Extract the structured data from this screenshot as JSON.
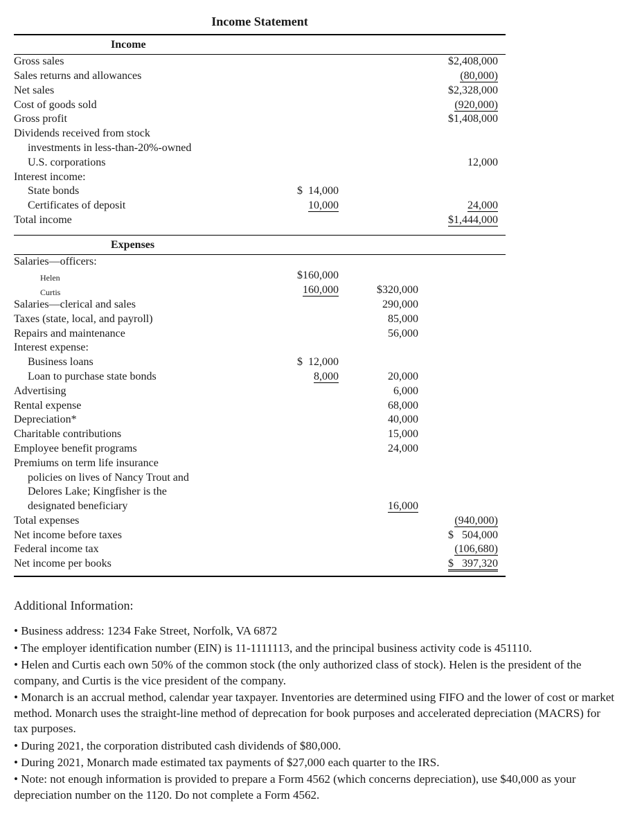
{
  "title": "Income Statement",
  "sections": {
    "income_header": "Income",
    "expenses_header": "Expenses"
  },
  "income": {
    "gross_sales": {
      "label": "Gross sales",
      "v3": "$2,408,000"
    },
    "returns": {
      "label": "Sales returns and allowances",
      "v3": "(80,000)",
      "u3": true
    },
    "net_sales": {
      "label": "Net sales",
      "v3": "$2,328,000"
    },
    "cogs": {
      "label": "Cost of goods sold",
      "v3": "(920,000)",
      "u3": true
    },
    "gross_profit": {
      "label": "Gross profit",
      "v3": "$1,408,000"
    },
    "dividends1": {
      "label": "Dividends received from stock"
    },
    "dividends2": {
      "label": "investments in less-than-20%-owned",
      "indent": 1
    },
    "dividends3": {
      "label": "U.S. corporations",
      "indent": 1,
      "v3": "12,000"
    },
    "interest_header": {
      "label": "Interest income:"
    },
    "state_bonds": {
      "label": "State bonds",
      "indent": 1,
      "v1": "$  14,000"
    },
    "cds": {
      "label": "Certificates of deposit",
      "indent": 1,
      "v1": "10,000",
      "u1": true,
      "v3": "24,000",
      "u3": true
    },
    "total_income": {
      "label": "Total income",
      "v3": "$1,444,000",
      "d3": true
    }
  },
  "expenses": {
    "sal_off": {
      "label": "Salaries—officers:"
    },
    "helen": {
      "label": "Helen",
      "small": true,
      "v1": "$160,000"
    },
    "curtis": {
      "label": "Curtis",
      "small": true,
      "v1": "160,000",
      "u1": true,
      "v2": "$320,000"
    },
    "sal_cs": {
      "label": "Salaries—clerical and sales",
      "v2": "290,000"
    },
    "taxes": {
      "label": "Taxes (state, local, and payroll)",
      "v2": "85,000"
    },
    "repairs": {
      "label": "Repairs and maintenance",
      "v2": "56,000"
    },
    "int_exp_h": {
      "label": "Interest expense:"
    },
    "bus_loans": {
      "label": "Business loans",
      "indent": 1,
      "v1": "$  12,000"
    },
    "loan_sb": {
      "label": "Loan to purchase state bonds",
      "indent": 1,
      "v1": "8,000",
      "u1": true,
      "v2": "20,000"
    },
    "adv": {
      "label": "Advertising",
      "v2": "6,000"
    },
    "rental": {
      "label": "Rental expense",
      "v2": "68,000"
    },
    "dep": {
      "label": "Depreciation*",
      "v2": "40,000"
    },
    "char": {
      "label": "Charitable contributions",
      "v2": "15,000"
    },
    "emp_ben": {
      "label": "Employee benefit programs",
      "v2": "24,000"
    },
    "prem1": {
      "label": "Premiums on term life insurance"
    },
    "prem2": {
      "label": "policies on lives of Nancy Trout and",
      "indent": 1
    },
    "prem3": {
      "label": "Delores Lake; Kingfisher is the",
      "indent": 1
    },
    "prem4": {
      "label": "designated beneficiary",
      "indent": 1,
      "v2": "16,000",
      "u2": true
    },
    "tot_exp": {
      "label": "Total expenses",
      "v3": "(940,000)",
      "u3": true
    },
    "nibt": {
      "label": "Net income before taxes",
      "v3": "$   504,000"
    },
    "fit": {
      "label": "Federal income tax",
      "v3": "(106,680)",
      "u3": true
    },
    "nib": {
      "label": "Net income per books",
      "v3": "$   397,320",
      "dbl3": true
    }
  },
  "additional": {
    "header": "Additional Information:",
    "items": [
      "Business address: 1234 Fake Street, Norfolk, VA 6872",
      "The employer identification number (EIN) is 11-1111113, and the principal business activity code is 451110.",
      "Helen and Curtis each own 50% of the common stock (the only authorized class of stock). Helen is the president of the company, and Curtis is the vice president of the company.",
      "Monarch is an accrual method, calendar year taxpayer. Inventories are determined using FIFO and the lower of cost or market method. Monarch uses the straight-line method of deprecation for book purposes and accelerated depreciation (MACRS) for tax purposes.",
      "During 2021, the corporation distributed cash dividends of $80,000.",
      "During 2021, Monarch made estimated tax payments of $27,000 each quarter to the IRS.",
      "Note: not enough information is provided to prepare a Form 4562 (which concerns depreciation), use $40,000 as your depreciation number on the 1120.  Do not complete a Form 4562."
    ]
  }
}
